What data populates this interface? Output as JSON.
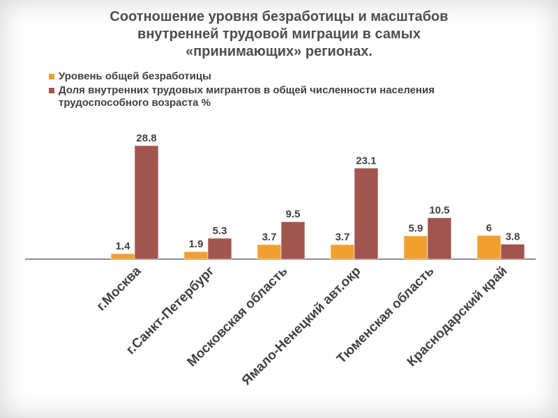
{
  "title_lines": [
    "Соотношение уровня безработицы и масштабов",
    "внутренней трудовой миграции в самых",
    "«принимающих» регионах."
  ],
  "colors": {
    "series1": "#f0a030",
    "series2": "#a0564e"
  },
  "chart_data": {
    "type": "bar",
    "categories": [
      "г.Москва",
      "г.Санкт-Петербург",
      "Московская область",
      "Ямало-Ненецкий авт.окр",
      "Тюменская область",
      "Краснодарский край"
    ],
    "series": [
      {
        "name": "Уровень общей безработицы",
        "values": [
          1.4,
          1.9,
          3.7,
          3.7,
          5.9,
          6
        ],
        "labels": [
          "1.4",
          "1.9",
          "3.7",
          "3.7",
          "5.9",
          "6"
        ]
      },
      {
        "name": "Доля внутренних трудовых мигрантов в общей численности населения трудоспособного возраста %",
        "values": [
          28.8,
          5.3,
          9.5,
          23.1,
          10.5,
          3.8
        ],
        "labels": [
          "28.8",
          "5.3",
          "9.5",
          "23.1",
          "10.5",
          "3.8"
        ]
      }
    ],
    "legend_position": "top",
    "grid": false,
    "ylim": [
      0,
      28.8
    ]
  }
}
